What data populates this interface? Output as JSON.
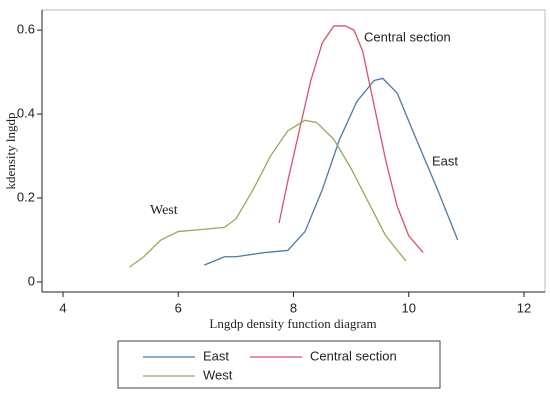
{
  "chart_data": {
    "type": "line",
    "xlabel": "Lngdp density function diagram",
    "ylabel": "kdensity lngdp",
    "xlim": [
      3.635,
      12.365
    ],
    "ylim": [
      -0.024,
      0.648
    ],
    "xticks": [
      4,
      6,
      8,
      10,
      12
    ],
    "yticks": [
      0,
      0.2,
      0.4,
      0.6
    ],
    "series": [
      {
        "name": "East",
        "color": "#4e7aa3",
        "x": [
          6.45,
          6.8,
          7.0,
          7.5,
          7.9,
          8.2,
          8.5,
          8.8,
          9.1,
          9.4,
          9.55,
          9.8,
          10.1,
          10.5,
          10.85
        ],
        "values": [
          0.04,
          0.06,
          0.06,
          0.07,
          0.075,
          0.12,
          0.22,
          0.34,
          0.43,
          0.48,
          0.485,
          0.45,
          0.35,
          0.22,
          0.1
        ]
      },
      {
        "name": "Central section",
        "color": "#d6546a",
        "x": [
          7.75,
          7.9,
          8.1,
          8.3,
          8.5,
          8.7,
          8.9,
          9.05,
          9.2,
          9.4,
          9.6,
          9.8,
          10.0,
          10.25
        ],
        "values": [
          0.14,
          0.24,
          0.36,
          0.48,
          0.57,
          0.61,
          0.61,
          0.6,
          0.55,
          0.42,
          0.29,
          0.18,
          0.11,
          0.07
        ]
      },
      {
        "name": "West",
        "color": "#93ab5c",
        "x": [
          5.15,
          5.4,
          5.7,
          6.0,
          6.4,
          6.8,
          7.0,
          7.3,
          7.6,
          7.9,
          8.2,
          8.4,
          8.7,
          9.0,
          9.3,
          9.6,
          9.95
        ],
        "values": [
          0.035,
          0.06,
          0.1,
          0.12,
          0.125,
          0.13,
          0.15,
          0.22,
          0.3,
          0.36,
          0.385,
          0.38,
          0.34,
          0.27,
          0.19,
          0.11,
          0.05
        ]
      }
    ],
    "annotations": [
      "Central section",
      "East",
      "West"
    ]
  }
}
